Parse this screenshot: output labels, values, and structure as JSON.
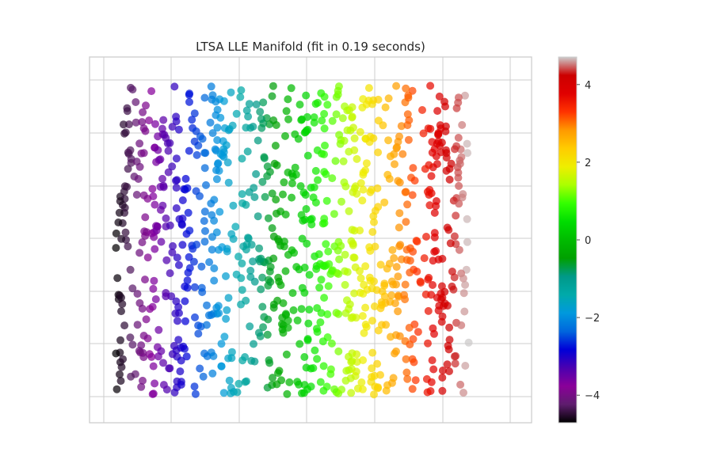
{
  "chart_data": {
    "type": "scatter",
    "title": "LTSA LLE Manifold (fit in 0.19 seconds)",
    "xlabel": "",
    "ylabel": "",
    "xlim": [
      -0.055,
      0.065
    ],
    "ylim": [
      -0.065,
      0.065
    ],
    "grid": true,
    "axis_ticks_labeled": false,
    "colormap": "nipy_spectral",
    "color_range": [
      -4.71,
      4.71
    ],
    "colorbar": {
      "ticks": [
        -4,
        -2,
        0,
        2,
        4
      ],
      "tick_labels": [
        "−4",
        "−2",
        "0",
        "2",
        "4"
      ]
    },
    "points": {
      "count": 1000,
      "description_of_data": "uniform in x across [-0.048, 0.048], y in [-0.055, 0.055]; color value varies linearly with x from -4.71 to 4.71",
      "x_range": [
        -0.048,
        0.048
      ],
      "y_range": [
        -0.055,
        0.055
      ]
    }
  },
  "colors": {
    "frame": "#cccccc",
    "grid": "#cccccc",
    "background": "#ffffff"
  }
}
